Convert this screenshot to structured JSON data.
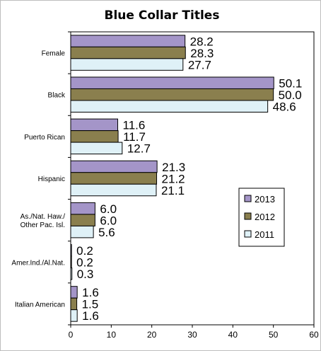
{
  "chart_data": {
    "type": "bar",
    "orientation": "horizontal",
    "title": "Blue Collar Titles",
    "categories": [
      "Female",
      "Black",
      "Puerto Rican",
      "Hispanic",
      [
        "As./Nat. Haw./",
        "Other Pac. Isl."
      ],
      "Amer.Ind./Al.Nat.",
      "Italian American"
    ],
    "series": [
      {
        "name": "2013",
        "color": "#a495c8",
        "values": [
          28.2,
          50.1,
          11.6,
          21.3,
          6.0,
          0.2,
          1.6
        ]
      },
      {
        "name": "2012",
        "color": "#8a7f4e",
        "values": [
          28.3,
          50.0,
          11.7,
          21.2,
          6.0,
          0.2,
          1.5
        ]
      },
      {
        "name": "2011",
        "color": "#dff1f7",
        "values": [
          27.7,
          48.6,
          12.7,
          21.1,
          5.6,
          0.3,
          1.6
        ]
      }
    ],
    "xlim": [
      0,
      60
    ],
    "xticks": [
      0,
      10,
      20,
      30,
      40,
      50,
      60
    ],
    "xlabel": "",
    "ylabel": "",
    "grid": false,
    "legend": "right"
  }
}
